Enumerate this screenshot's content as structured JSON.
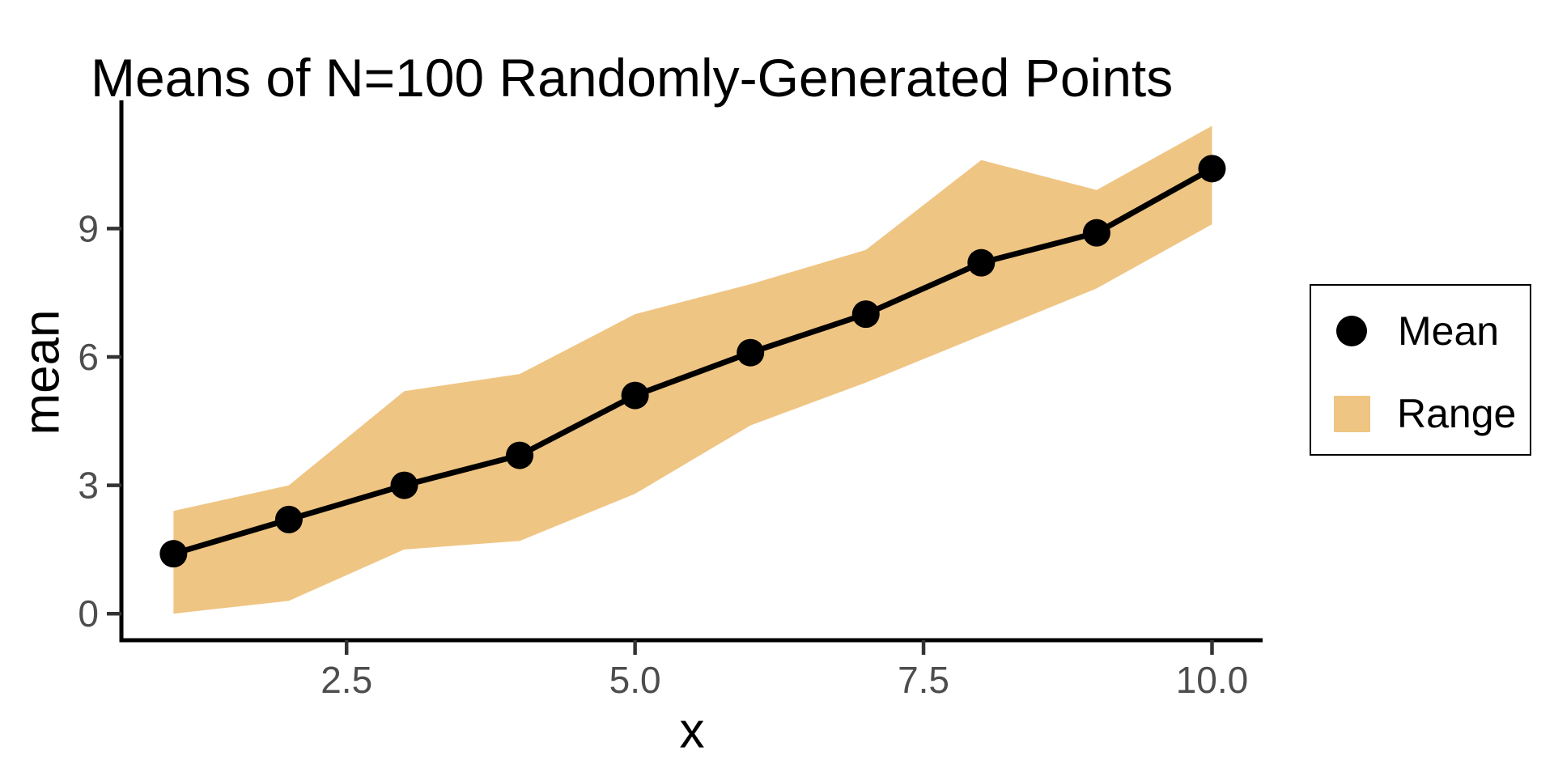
{
  "title": "Means of N=100 Randomly-Generated Points",
  "axes": {
    "x_label": "x",
    "y_label": "mean",
    "x_tick_labels": [
      "2.5",
      "5.0",
      "7.5",
      "10.0"
    ],
    "x_tick_values": [
      2.5,
      5.0,
      7.5,
      10.0
    ],
    "y_tick_labels": [
      "0",
      "3",
      "6",
      "9"
    ],
    "y_tick_values": [
      0,
      3,
      6,
      9
    ]
  },
  "legend": {
    "mean_label": "Mean",
    "range_label": "Range"
  },
  "colors": {
    "ribbon": "#EFC583",
    "line": "#000000",
    "point": "#000000",
    "axis": "#000000",
    "tick_mark": "#333333",
    "tick_label": "#4D4D4D",
    "title": "#000000"
  },
  "chart_data": {
    "type": "line",
    "title": "Means of N=100 Randomly-Generated Points",
    "xlabel": "x",
    "ylabel": "mean",
    "x": [
      1,
      2,
      3,
      4,
      5,
      6,
      7,
      8,
      9,
      10
    ],
    "series": [
      {
        "name": "Mean",
        "style": "points+line",
        "values": [
          1.4,
          2.2,
          3.0,
          3.7,
          5.1,
          6.1,
          7.0,
          8.2,
          8.9,
          10.4
        ]
      },
      {
        "name": "Range",
        "style": "ribbon",
        "min": [
          0.0,
          0.3,
          1.5,
          1.7,
          2.8,
          4.4,
          5.4,
          6.5,
          7.6,
          9.1
        ],
        "max": [
          2.4,
          3.0,
          5.2,
          5.6,
          7.0,
          7.7,
          8.5,
          10.6,
          9.9,
          11.4
        ]
      }
    ],
    "x_ticks": [
      2.5,
      5.0,
      7.5,
      10.0
    ],
    "y_ticks": [
      0,
      3,
      6,
      9
    ],
    "xlim": [
      0.55,
      10.45
    ],
    "ylim": [
      -0.6,
      12.0
    ],
    "grid": false,
    "legend_position": "right"
  }
}
